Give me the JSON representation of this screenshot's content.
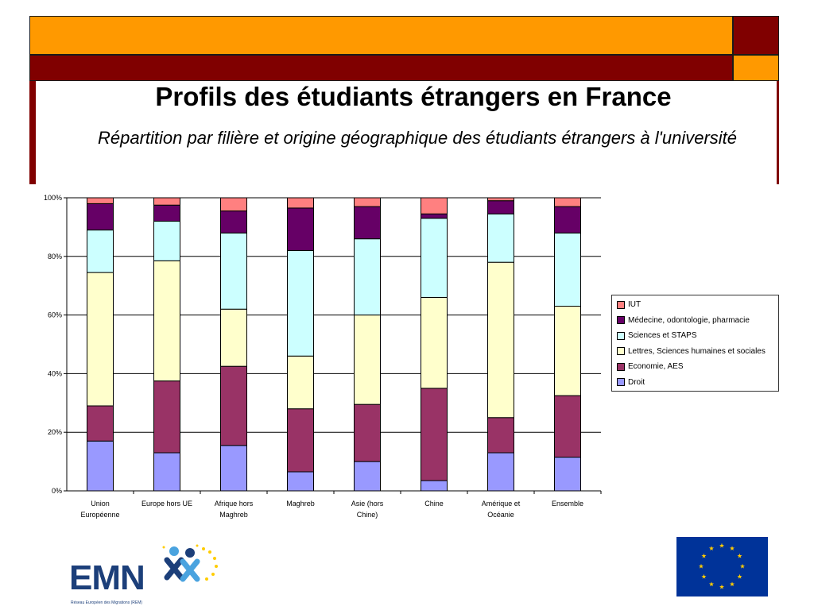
{
  "header": {
    "title": "Profils des étudiants étrangers en France",
    "subtitle": "Répartition par filière et origine géographique des étudiants étrangers à l'université"
  },
  "colors": {
    "orange": "#ff9900",
    "dark_red": "#800000",
    "emn_blue": "#1c3f7a",
    "eu_blue": "#003399",
    "eu_star": "#ffcc00"
  },
  "chart_data": {
    "type": "bar",
    "stacked": true,
    "percent": true,
    "categories": [
      [
        "Union",
        "Européenne"
      ],
      [
        "Europe hors UE"
      ],
      [
        "Afrique hors",
        "Maghreb"
      ],
      [
        "Maghreb"
      ],
      [
        "Asie (hors",
        "Chine)"
      ],
      [
        "Chine"
      ],
      [
        "Amérique et",
        "Océanie"
      ],
      [
        "Ensemble"
      ]
    ],
    "y_ticks": [
      "0%",
      "20%",
      "40%",
      "60%",
      "80%",
      "100%"
    ],
    "ylim": [
      0,
      100
    ],
    "grid": true,
    "legend_position": "right",
    "series": [
      {
        "name": "Droit",
        "color": "#9999ff",
        "values": [
          17,
          13,
          15.5,
          6.5,
          10,
          3.5,
          13,
          11.5
        ]
      },
      {
        "name": "Economie, AES",
        "color": "#993366",
        "values": [
          12,
          24.5,
          27,
          21.5,
          19.5,
          31.5,
          12,
          21
        ]
      },
      {
        "name": "Lettres, Sciences humaines et sociales",
        "color": "#ffffcc",
        "values": [
          45.5,
          41,
          19.5,
          18,
          30.5,
          31,
          53,
          30.5
        ]
      },
      {
        "name": "Sciences et STAPS",
        "color": "#ccffff",
        "values": [
          14.5,
          13.5,
          26,
          36,
          26,
          27,
          16.5,
          25
        ]
      },
      {
        "name": "Médecine, odontologie, pharmacie",
        "color": "#660066",
        "values": [
          9,
          5.5,
          7.5,
          14.5,
          11,
          1.5,
          4.5,
          9
        ]
      },
      {
        "name": "IUT",
        "color": "#ff8080",
        "values": [
          2,
          2.5,
          4.5,
          3.5,
          3,
          5.5,
          1,
          3
        ]
      }
    ]
  },
  "logos": {
    "emn_text": "EMN",
    "emn_subtitle": "Réseau Européen des Migrations (REM)"
  }
}
